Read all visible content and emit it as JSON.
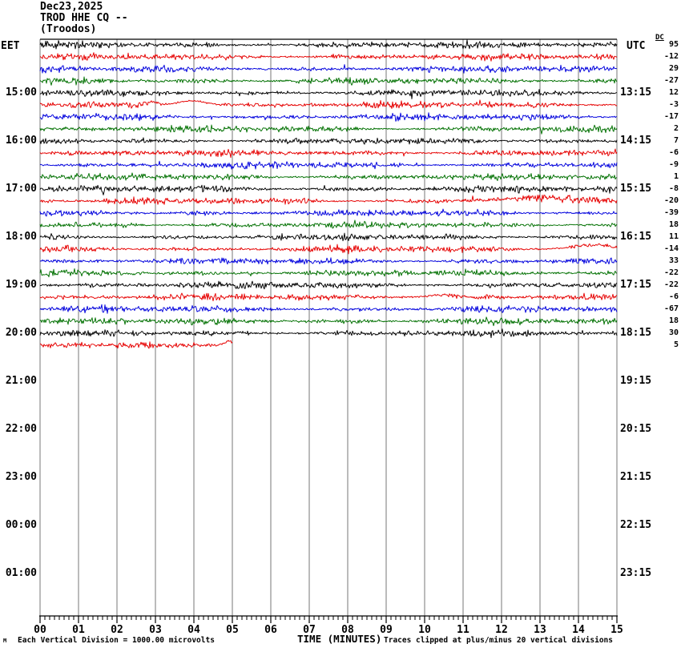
{
  "title": {
    "date": "Dec23,2025",
    "station": "TROD HHE CQ --",
    "location": "(Troodos)"
  },
  "left_axis": {
    "label": "EET",
    "hours": [
      "15:00",
      "16:00",
      "17:00",
      "18:00",
      "19:00",
      "20:00",
      "21:00",
      "22:00",
      "23:00",
      "00:00",
      "01:00"
    ],
    "hour_rows": [
      4,
      8,
      12,
      16,
      20,
      24,
      28,
      32,
      36,
      40,
      44
    ]
  },
  "right_axis": {
    "label": "UTC",
    "hours": [
      "13:15",
      "14:15",
      "15:15",
      "16:15",
      "17:15",
      "18:15",
      "19:15",
      "20:15",
      "21:15",
      "22:15",
      "23:15"
    ],
    "hour_rows": [
      4,
      8,
      12,
      16,
      20,
      24,
      28,
      32,
      36,
      40,
      44
    ]
  },
  "dc_column": {
    "label": "DC",
    "values": [
      95,
      -12,
      29,
      -27,
      12,
      -3,
      -17,
      2,
      7,
      -6,
      -9,
      1,
      -8,
      -20,
      -39,
      18,
      11,
      -14,
      33,
      -22,
      -22,
      -6,
      -67,
      18,
      30,
      5
    ]
  },
  "x_axis": {
    "label": "TIME (MINUTES)",
    "ticks": [
      "00",
      "01",
      "02",
      "03",
      "04",
      "05",
      "06",
      "07",
      "08",
      "09",
      "10",
      "11",
      "12",
      "13",
      "14",
      "15"
    ]
  },
  "footer": {
    "watermark": "M",
    "left_note": "Each Vertical Division = 1000.00 microvolts",
    "right_note": "Traces clipped at plus/minus 20 vertical divisions"
  },
  "colors": {
    "black": "#000000",
    "red": "#e60000",
    "blue": "#0000dd",
    "green": "#007000",
    "grid": "#777777",
    "frame": "#000000"
  },
  "chart_data": {
    "type": "line",
    "subtype": "helicorder-seismogram",
    "title": "TROD HHE CQ -- (Troodos) Dec23,2025",
    "xlabel": "TIME (MINUTES)",
    "x_range_minutes": [
      0,
      15
    ],
    "minutes_per_row": 15,
    "total_display_rows": 48,
    "first_row_start_eet": "14:00",
    "drawn_rows": 26,
    "row_color_cycle": [
      "black",
      "red",
      "blue",
      "green"
    ],
    "rows": [
      {
        "eet_start": "14:00",
        "color": "black",
        "dc": 95,
        "end_minute": 15
      },
      {
        "eet_start": "14:15",
        "color": "red",
        "dc": -12,
        "end_minute": 15
      },
      {
        "eet_start": "14:30",
        "color": "blue",
        "dc": 29,
        "end_minute": 15
      },
      {
        "eet_start": "14:45",
        "color": "green",
        "dc": -27,
        "end_minute": 15
      },
      {
        "eet_start": "15:00",
        "color": "black",
        "dc": 12,
        "end_minute": 15
      },
      {
        "eet_start": "15:15",
        "color": "red",
        "dc": -3,
        "end_minute": 15
      },
      {
        "eet_start": "15:30",
        "color": "blue",
        "dc": -17,
        "end_minute": 15
      },
      {
        "eet_start": "15:45",
        "color": "green",
        "dc": 2,
        "end_minute": 15
      },
      {
        "eet_start": "16:00",
        "color": "black",
        "dc": 7,
        "end_minute": 15
      },
      {
        "eet_start": "16:15",
        "color": "red",
        "dc": -6,
        "end_minute": 15
      },
      {
        "eet_start": "16:30",
        "color": "blue",
        "dc": -9,
        "end_minute": 15
      },
      {
        "eet_start": "16:45",
        "color": "green",
        "dc": 1,
        "end_minute": 15
      },
      {
        "eet_start": "17:00",
        "color": "black",
        "dc": -8,
        "end_minute": 15
      },
      {
        "eet_start": "17:15",
        "color": "red",
        "dc": -20,
        "end_minute": 15
      },
      {
        "eet_start": "17:30",
        "color": "blue",
        "dc": -39,
        "end_minute": 15
      },
      {
        "eet_start": "17:45",
        "color": "green",
        "dc": 18,
        "end_minute": 15
      },
      {
        "eet_start": "18:00",
        "color": "black",
        "dc": 11,
        "end_minute": 15
      },
      {
        "eet_start": "18:15",
        "color": "red",
        "dc": -14,
        "end_minute": 15
      },
      {
        "eet_start": "18:30",
        "color": "blue",
        "dc": 33,
        "end_minute": 15
      },
      {
        "eet_start": "18:45",
        "color": "green",
        "dc": -22,
        "end_minute": 15
      },
      {
        "eet_start": "19:00",
        "color": "black",
        "dc": -22,
        "end_minute": 15
      },
      {
        "eet_start": "19:15",
        "color": "red",
        "dc": -6,
        "end_minute": 15
      },
      {
        "eet_start": "19:30",
        "color": "blue",
        "dc": -67,
        "end_minute": 15
      },
      {
        "eet_start": "19:45",
        "color": "green",
        "dc": 18,
        "end_minute": 15
      },
      {
        "eet_start": "20:00",
        "color": "black",
        "dc": 30,
        "end_minute": 15
      },
      {
        "eet_start": "20:15",
        "color": "red",
        "dc": 5,
        "end_minute": 5
      }
    ],
    "events": [
      {
        "row": 5,
        "minute": 2.9,
        "amp": 4,
        "width": 0.12
      },
      {
        "row": 5,
        "minute": 3.95,
        "amp": 5,
        "width": 0.35
      },
      {
        "row": 13,
        "minute": 13.0,
        "amp": 4,
        "width": 0.9
      },
      {
        "row": 17,
        "minute": 14.4,
        "amp": 5,
        "width": 0.5
      },
      {
        "row": 21,
        "minute": 10.45,
        "amp": 3,
        "width": 0.3
      },
      {
        "row": 25,
        "minute": 4.9,
        "amp": 5,
        "width": 0.12
      }
    ],
    "clip_divisions": 20,
    "microvolts_per_division": 1000.0,
    "grid": true,
    "gridline_every_minutes": 1,
    "minor_ticks_per_minute": 8
  }
}
